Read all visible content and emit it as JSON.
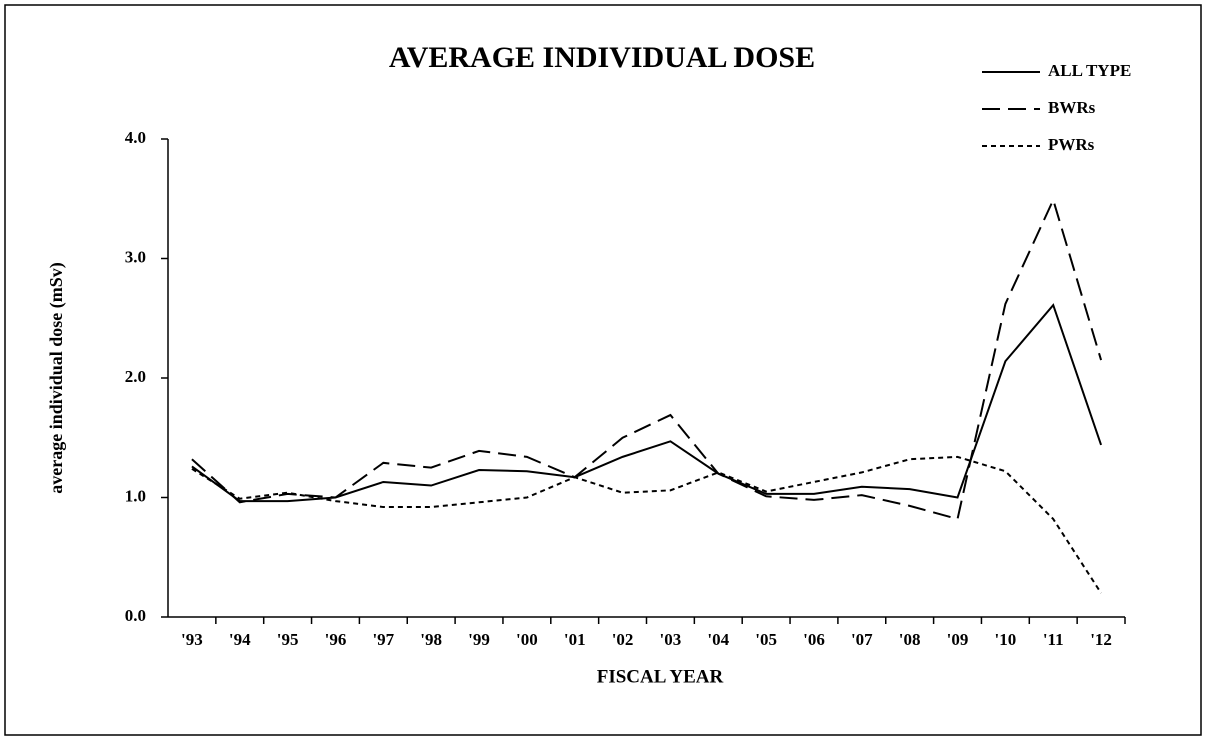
{
  "chart_data": {
    "type": "line",
    "title": "AVERAGE INDIVIDUAL DOSE",
    "x_label": "FISCAL YEAR",
    "y_label": "average individual dose (mSv)",
    "categories": [
      "'93",
      "'94",
      "'95",
      "'96",
      "'97",
      "'98",
      "'99",
      "'00",
      "'01",
      "'02",
      "'03",
      "'04",
      "'05",
      "'06",
      "'07",
      "'08",
      "'09",
      "'10",
      "'11",
      "'12"
    ],
    "series": [
      {
        "name": "ALL TYPE",
        "color": "#000000",
        "dash": "solid",
        "values": [
          1.26,
          0.97,
          0.97,
          1.0,
          1.13,
          1.1,
          1.23,
          1.22,
          1.17,
          1.34,
          1.47,
          1.2,
          1.03,
          1.03,
          1.09,
          1.07,
          1.0,
          2.14,
          2.61,
          1.44
        ]
      },
      {
        "name": "BWRs",
        "color": "#000000",
        "dash": "dashed",
        "values": [
          1.32,
          0.96,
          1.03,
          1.0,
          1.29,
          1.25,
          1.39,
          1.34,
          1.17,
          1.5,
          1.69,
          1.2,
          1.01,
          0.98,
          1.02,
          0.93,
          0.82,
          2.62,
          3.49,
          2.15
        ]
      },
      {
        "name": "PWRs",
        "color": "#000000",
        "dash": "dotted",
        "values": [
          1.24,
          0.99,
          1.04,
          0.97,
          0.92,
          0.92,
          0.96,
          1.0,
          1.17,
          1.04,
          1.06,
          1.21,
          1.05,
          1.13,
          1.21,
          1.32,
          1.34,
          1.22,
          0.82,
          0.2
        ]
      }
    ],
    "ylim": [
      0,
      4
    ],
    "yticks": [
      {
        "value": 0,
        "label": "0.0"
      },
      {
        "value": 1,
        "label": "1.0"
      },
      {
        "value": 2,
        "label": "2.0"
      },
      {
        "value": 3,
        "label": "3.0"
      },
      {
        "value": 4,
        "label": "4.0"
      }
    ],
    "grid": false,
    "legend": "top-right"
  }
}
